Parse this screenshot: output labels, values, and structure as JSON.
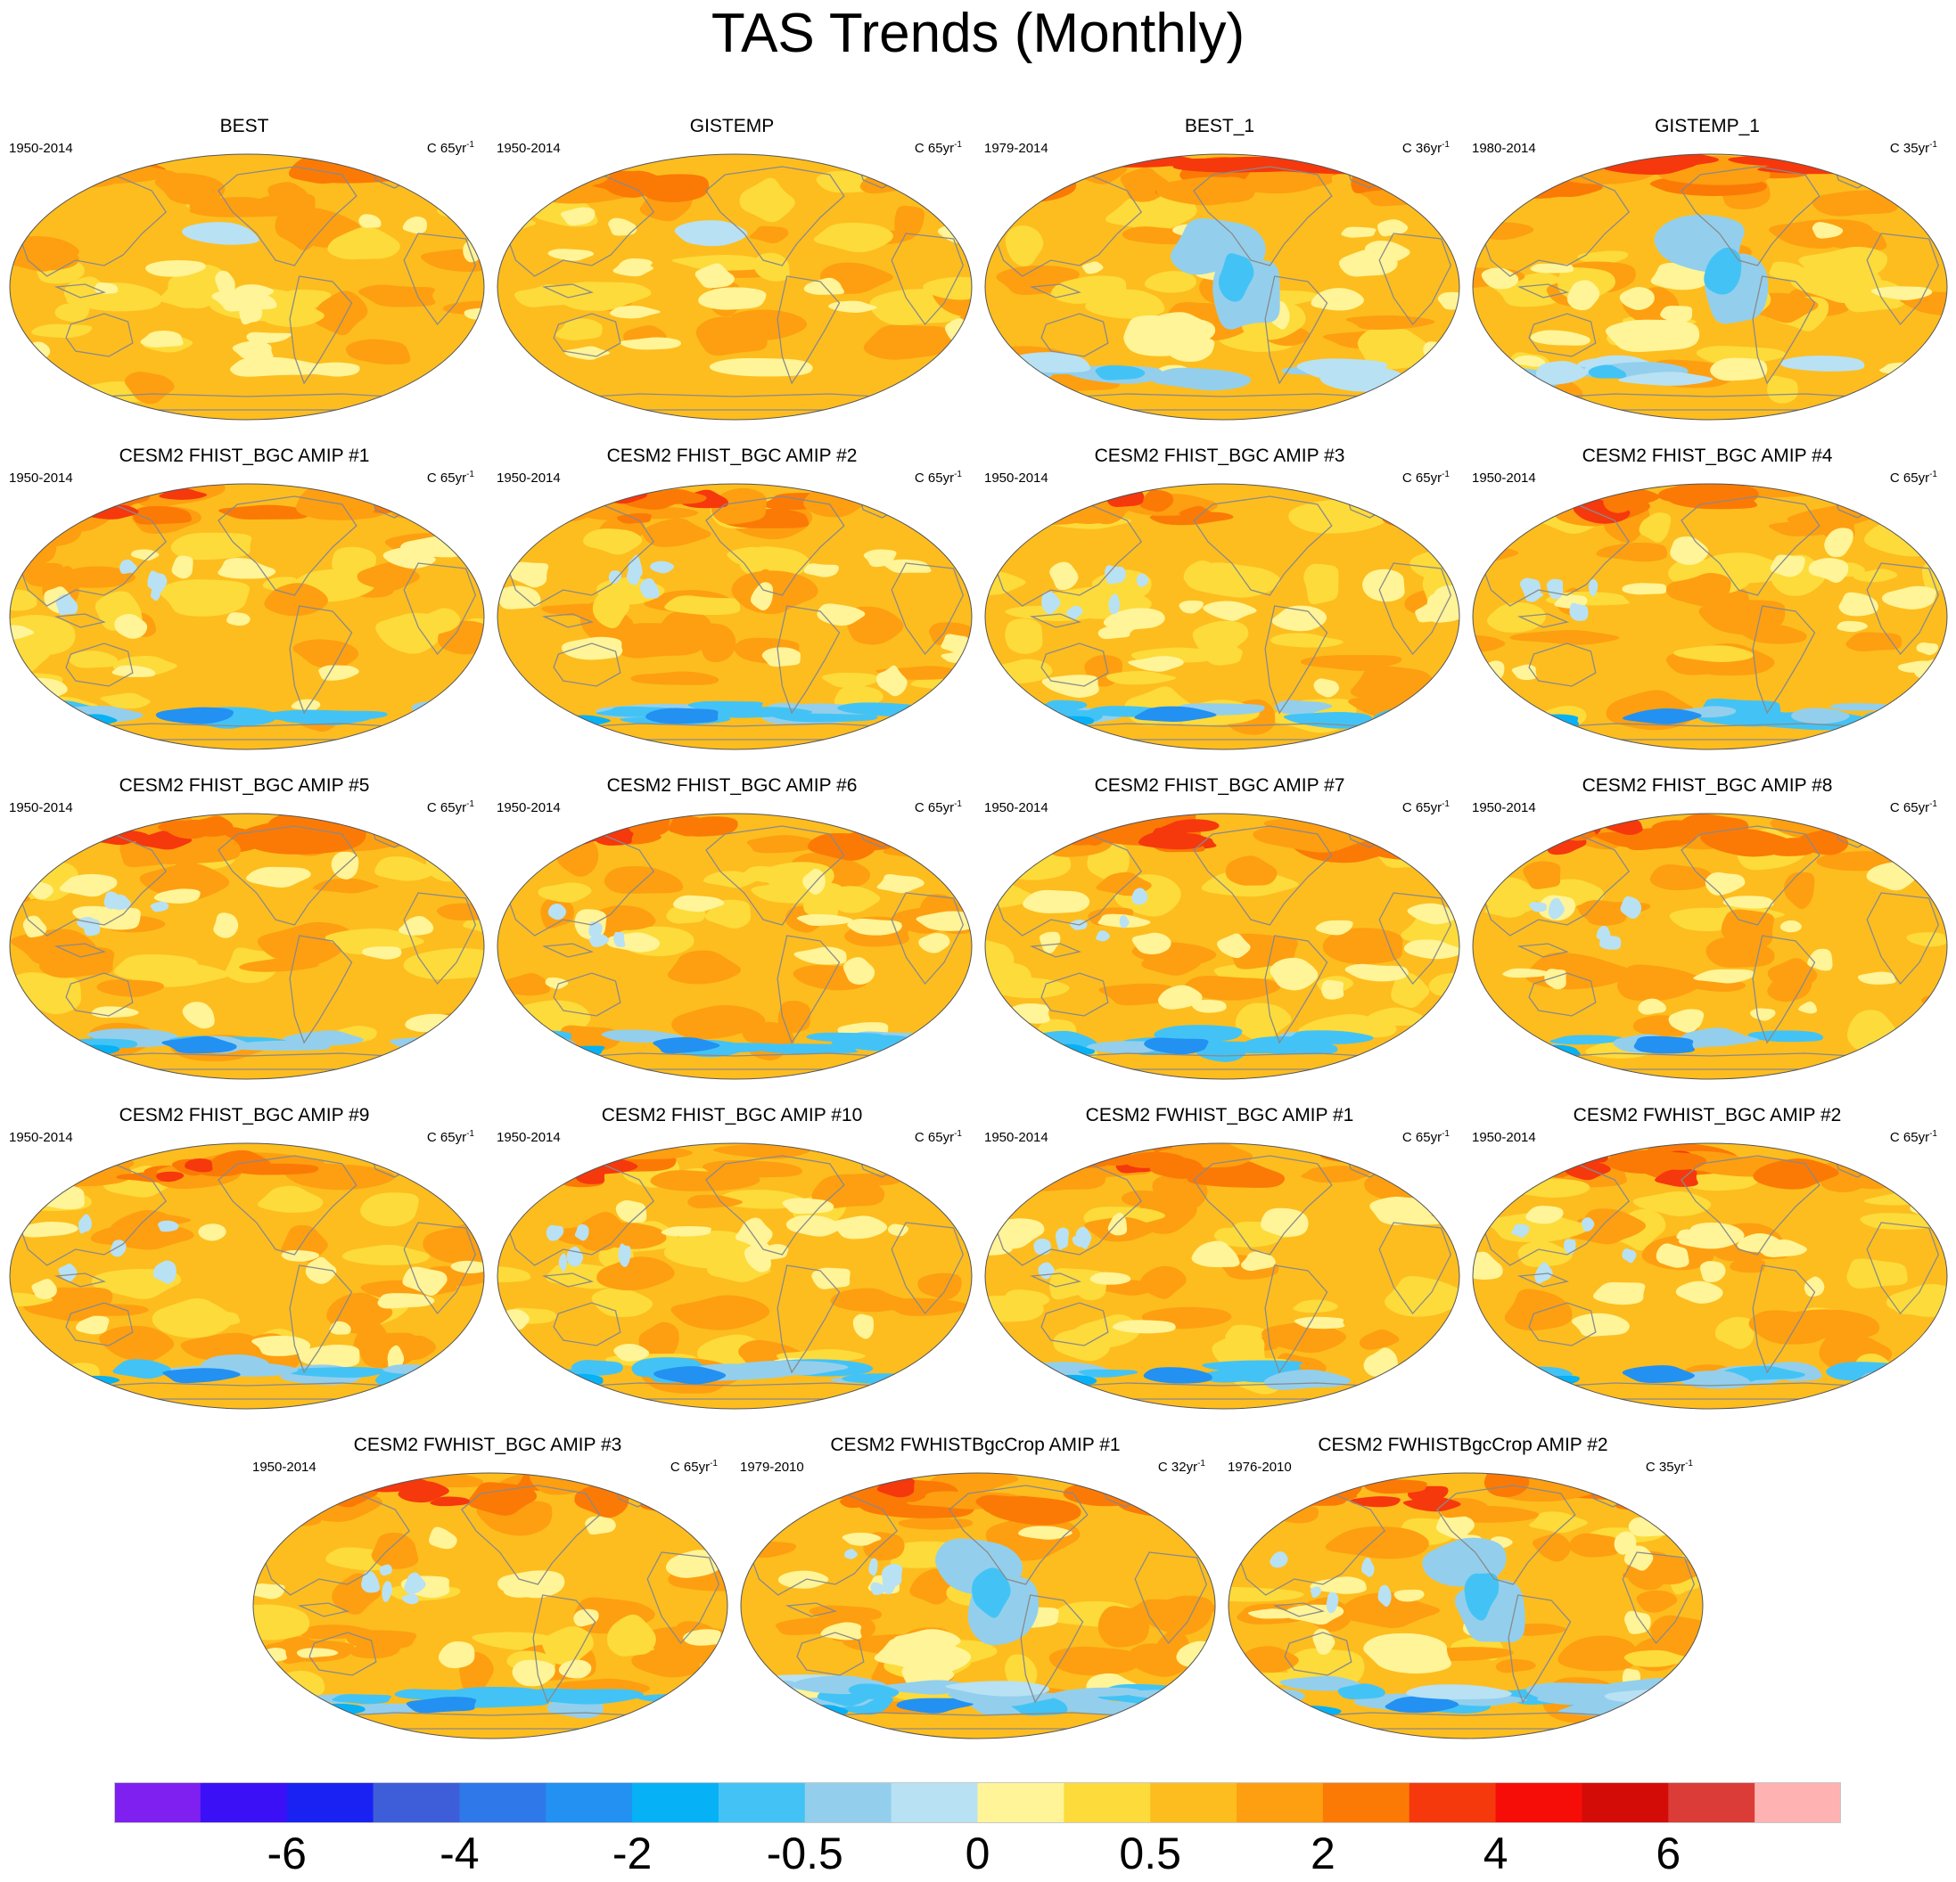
{
  "title": "TAS Trends (Monthly)",
  "colors": {
    "coast": "#8a8a8a",
    "outline": "#555555",
    "palette": [
      "#7f1ff0",
      "#3c10f7",
      "#1a22f3",
      "#3d5ed8",
      "#2f78ea",
      "#2291f2",
      "#07b1f5",
      "#43c3f5",
      "#93cfec",
      "#b8e1f4",
      "#fff497",
      "#fddb3a",
      "#fdbd1f",
      "#fd9f10",
      "#fb7a06",
      "#f6380d",
      "#f70d07",
      "#d40c08",
      "#db3c37",
      "#feb2b2"
    ]
  },
  "chart_data": {
    "type": "map-panel-grid",
    "title": "TAS Trends (Monthly)",
    "projection": "Robinson-like global, Pacific-centered",
    "colorbar": {
      "tick_labels": [
        "-6",
        "-4",
        "-2",
        "-0.5",
        "0",
        "0.5",
        "2",
        "4",
        "6"
      ],
      "n_bins": 20
    },
    "panels": [
      {
        "name": "BEST",
        "period": "1950-2014",
        "units": "C 65yr",
        "pattern": "obs"
      },
      {
        "name": "GISTEMP",
        "period": "1950-2014",
        "units": "C 65yr",
        "pattern": "obs"
      },
      {
        "name": "BEST_1",
        "period": "1979-2014",
        "units": "C 36yr",
        "pattern": "obs_recent"
      },
      {
        "name": "GISTEMP_1",
        "period": "1980-2014",
        "units": "C 35yr",
        "pattern": "obs_recent"
      },
      {
        "name": "CESM2 FHIST_BGC AMIP #1",
        "period": "1950-2014",
        "units": "C 65yr",
        "pattern": "model"
      },
      {
        "name": "CESM2 FHIST_BGC AMIP #2",
        "period": "1950-2014",
        "units": "C 65yr",
        "pattern": "model"
      },
      {
        "name": "CESM2 FHIST_BGC AMIP #3",
        "period": "1950-2014",
        "units": "C 65yr",
        "pattern": "model"
      },
      {
        "name": "CESM2 FHIST_BGC AMIP #4",
        "period": "1950-2014",
        "units": "C 65yr",
        "pattern": "model"
      },
      {
        "name": "CESM2 FHIST_BGC AMIP #5",
        "period": "1950-2014",
        "units": "C 65yr",
        "pattern": "model"
      },
      {
        "name": "CESM2 FHIST_BGC AMIP #6",
        "period": "1950-2014",
        "units": "C 65yr",
        "pattern": "model"
      },
      {
        "name": "CESM2 FHIST_BGC AMIP #7",
        "period": "1950-2014",
        "units": "C 65yr",
        "pattern": "model"
      },
      {
        "name": "CESM2 FHIST_BGC AMIP #8",
        "period": "1950-2014",
        "units": "C 65yr",
        "pattern": "model"
      },
      {
        "name": "CESM2 FHIST_BGC AMIP #9",
        "period": "1950-2014",
        "units": "C 65yr",
        "pattern": "model"
      },
      {
        "name": "CESM2 FHIST_BGC AMIP #10",
        "period": "1950-2014",
        "units": "C 65yr",
        "pattern": "model"
      },
      {
        "name": "CESM2 FWHIST_BGC AMIP #1",
        "period": "1950-2014",
        "units": "C 65yr",
        "pattern": "model"
      },
      {
        "name": "CESM2 FWHIST_BGC AMIP #2",
        "period": "1950-2014",
        "units": "C 65yr",
        "pattern": "model"
      },
      {
        "name": "CESM2 FWHIST_BGC AMIP #3",
        "period": "1950-2014",
        "units": "C 65yr",
        "pattern": "model"
      },
      {
        "name": "CESM2 FWHISTBgcCrop AMIP #1",
        "period": "1979-2010",
        "units": "C 32yr",
        "pattern": "model_recent"
      },
      {
        "name": "CESM2 FWHISTBgcCrop AMIP #2",
        "period": "1976-2010",
        "units": "C 35yr",
        "pattern": "model_recent"
      }
    ]
  }
}
